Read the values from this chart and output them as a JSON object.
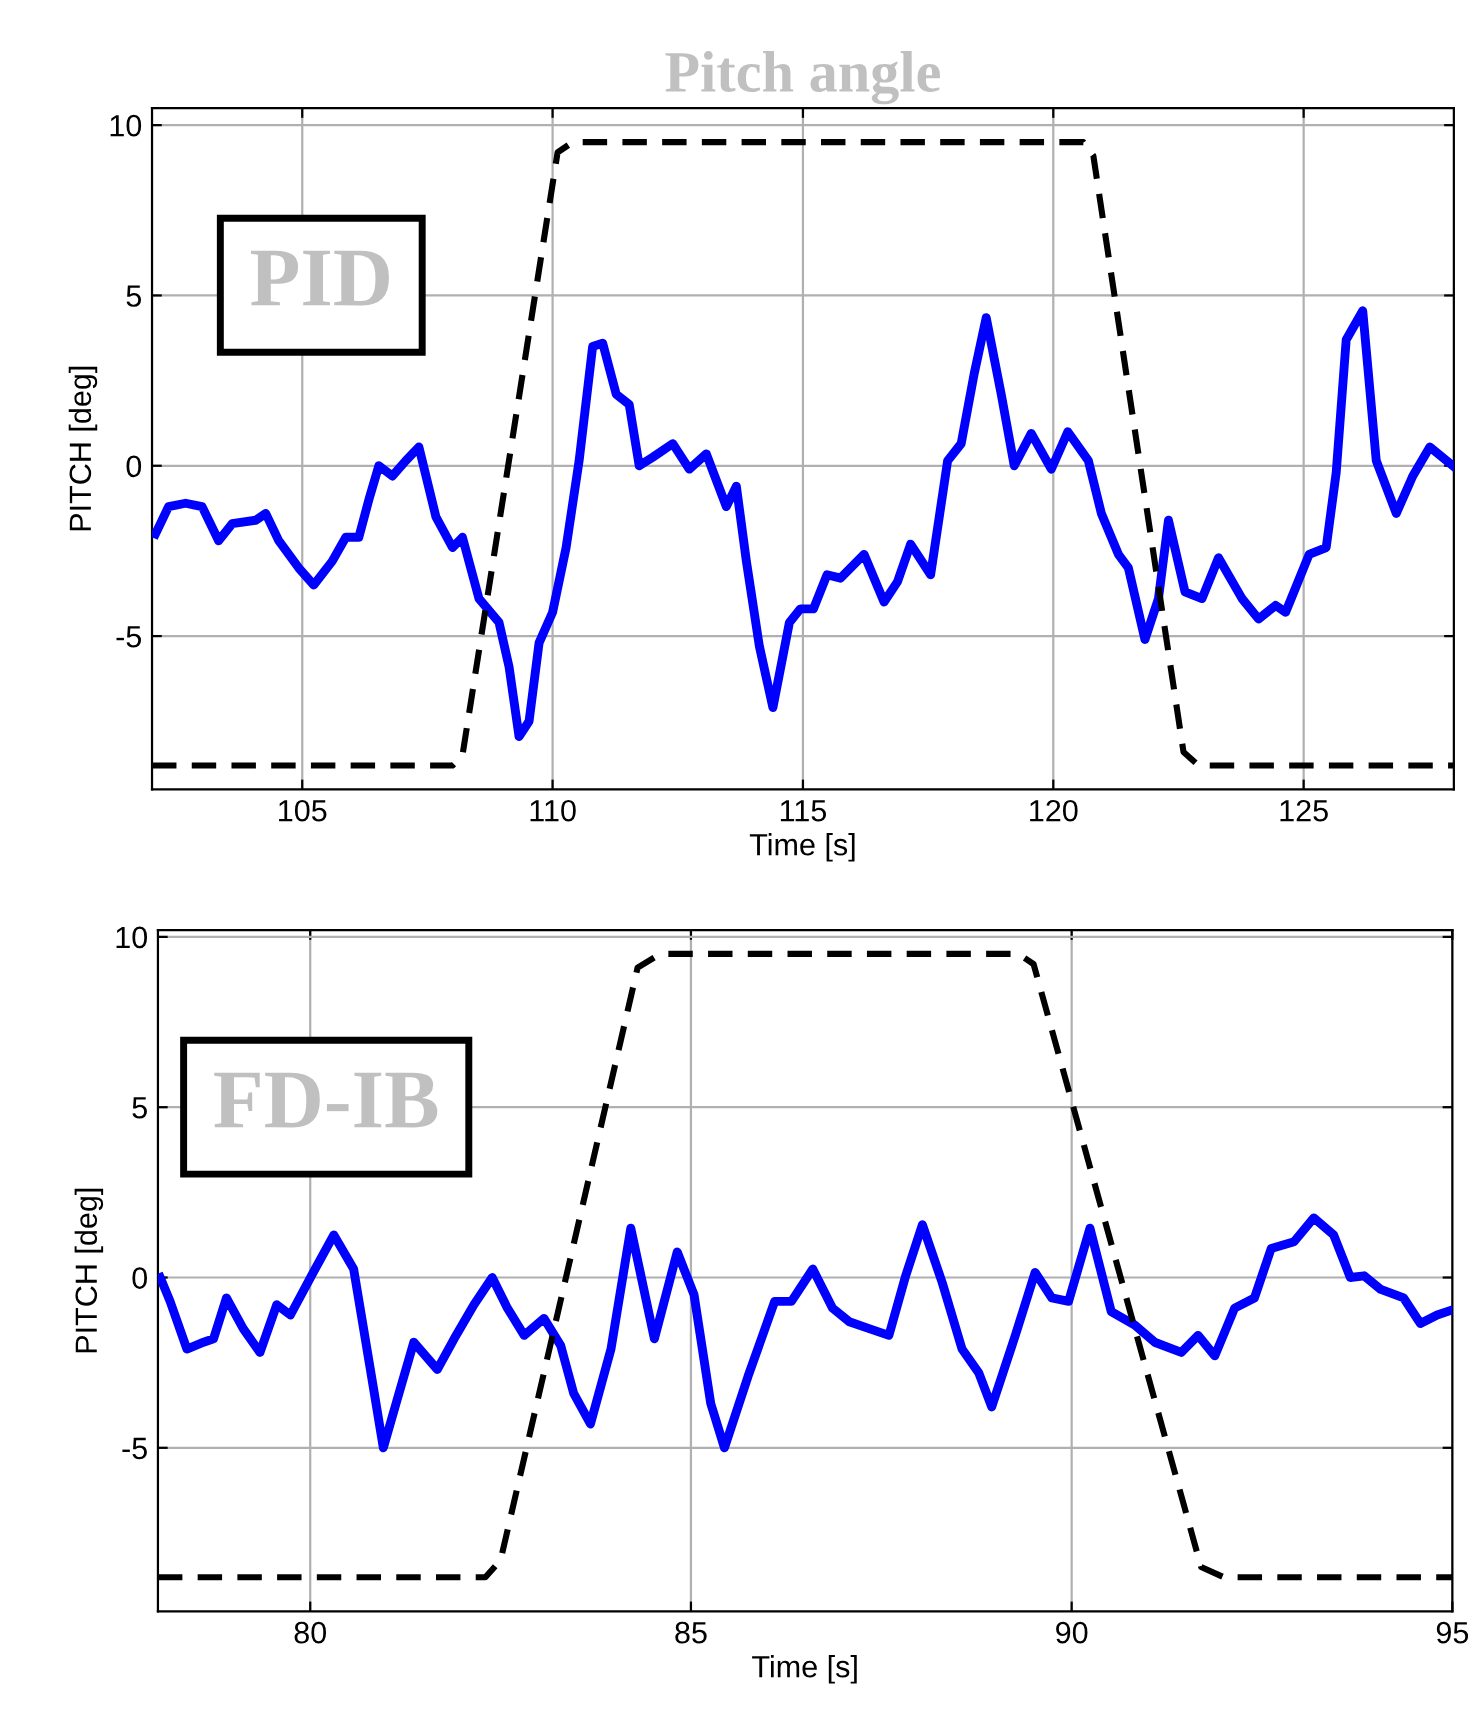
{
  "chart_data": [
    {
      "type": "line",
      "title": "Pitch angle",
      "xlabel": "Time [s]",
      "ylabel": "PITCH [deg]",
      "annotations": [
        "PID"
      ],
      "xlim": [
        102,
        128
      ],
      "ylim": [
        -9.5,
        10.5
      ],
      "xticks": [
        105,
        110,
        115,
        120,
        125
      ],
      "yticks": [
        -5,
        0,
        5,
        10
      ],
      "grid": true,
      "series": [
        {
          "color": "#0000ff",
          "line_style": "solid",
          "x": [
            102.07,
            102.33,
            102.67,
            103.0,
            103.33,
            103.6,
            104.07,
            104.27,
            104.53,
            104.93,
            105.23,
            105.6,
            105.87,
            106.13,
            106.33,
            106.53,
            106.8,
            107.07,
            107.33,
            107.67,
            108.0,
            108.2,
            108.53,
            108.93,
            109.13,
            109.33,
            109.53,
            109.73,
            110.0,
            110.27,
            110.53,
            110.8,
            111.0,
            111.27,
            111.53,
            111.73,
            112.0,
            112.4,
            112.73,
            113.07,
            113.47,
            113.67,
            113.87,
            114.13,
            114.4,
            114.73,
            114.95,
            115.21,
            115.48,
            115.75,
            116.22,
            116.62,
            116.89,
            117.15,
            117.55,
            117.89,
            118.16,
            118.42,
            118.66,
            118.96,
            119.22,
            119.56,
            119.96,
            120.29,
            120.7,
            120.96,
            121.3,
            121.5,
            121.83,
            122.1,
            122.3,
            122.63,
            122.97,
            123.3,
            123.77,
            124.1,
            124.44,
            124.64,
            125.11,
            125.45,
            125.65,
            125.85,
            126.18,
            126.45,
            126.85,
            127.18,
            127.52,
            127.98
          ],
          "values": [
            -2.0,
            -1.2,
            -1.1,
            -1.2,
            -2.2,
            -1.7,
            -1.6,
            -1.4,
            -2.2,
            -3.0,
            -3.5,
            -2.8,
            -2.1,
            -2.1,
            -1.0,
            0.0,
            -0.3,
            0.15,
            0.55,
            -1.5,
            -2.4,
            -2.1,
            -3.9,
            -4.6,
            -5.9,
            -7.95,
            -7.5,
            -5.2,
            -4.3,
            -2.4,
            0.15,
            3.5,
            3.6,
            2.1,
            1.8,
            0.0,
            0.25,
            0.65,
            -0.1,
            0.35,
            -1.2,
            -0.6,
            -2.8,
            -5.3,
            -7.1,
            -4.6,
            -4.2,
            -4.2,
            -3.2,
            -3.3,
            -2.6,
            -4.0,
            -3.4,
            -2.3,
            -3.2,
            0.15,
            0.65,
            2.7,
            4.35,
            2.1,
            0.0,
            0.95,
            -0.1,
            1.0,
            0.15,
            -1.4,
            -2.6,
            -3.0,
            -5.1,
            -3.9,
            -1.6,
            -3.7,
            -3.9,
            -2.7,
            -3.9,
            -4.5,
            -4.1,
            -4.3,
            -2.6,
            -2.4,
            -0.2,
            3.7,
            4.55,
            0.15,
            -1.4,
            -0.3,
            0.55,
            0.0
          ]
        },
        {
          "color": "#000000",
          "line_style": "dashed",
          "x": [
            102,
            108.0,
            108.2,
            110.1,
            110.4,
            120.6,
            120.8,
            122.6,
            122.9,
            128
          ],
          "values": [
            -8.8,
            -8.8,
            -8.5,
            9.2,
            9.5,
            9.5,
            9.1,
            -8.4,
            -8.8,
            -8.8
          ]
        }
      ]
    },
    {
      "type": "line",
      "xlabel": "Time [s]",
      "ylabel": "PITCH [deg]",
      "annotations": [
        "FD-IB"
      ],
      "xlim": [
        78,
        95
      ],
      "ylim": [
        -9.8,
        10.2
      ],
      "xticks": [
        80,
        85,
        90,
        95
      ],
      "yticks": [
        -5,
        0,
        5,
        10
      ],
      "grid": true,
      "series": [
        {
          "color": "#0000ff",
          "line_style": "solid",
          "x": [
            78.03,
            78.16,
            78.38,
            78.6,
            78.73,
            78.9,
            79.12,
            79.34,
            79.56,
            79.74,
            80.04,
            80.31,
            80.57,
            80.79,
            80.96,
            81.14,
            81.36,
            81.67,
            81.89,
            82.15,
            82.39,
            82.59,
            82.81,
            83.07,
            83.29,
            83.46,
            83.68,
            83.95,
            84.21,
            84.52,
            84.82,
            85.04,
            85.26,
            85.44,
            85.75,
            86.1,
            86.32,
            86.6,
            86.86,
            87.08,
            87.34,
            87.6,
            87.82,
            88.04,
            88.3,
            88.56,
            88.78,
            88.95,
            89.26,
            89.52,
            89.74,
            89.96,
            90.24,
            90.52,
            90.83,
            91.09,
            91.44,
            91.66,
            91.88,
            92.14,
            92.4,
            92.62,
            92.92,
            93.18,
            93.44,
            93.66,
            93.84,
            94.06,
            94.36,
            94.58,
            94.8,
            95.0
          ],
          "values": [
            0,
            -0.7,
            -2.1,
            -1.9,
            -1.8,
            -0.6,
            -1.5,
            -2.2,
            -0.8,
            -1.1,
            0.15,
            1.25,
            0.25,
            -2.7,
            -5.0,
            -3.6,
            -1.9,
            -2.7,
            -1.8,
            -0.8,
            0.0,
            -0.9,
            -1.7,
            -1.2,
            -2.0,
            -3.4,
            -4.3,
            -2.1,
            1.45,
            -1.8,
            0.75,
            -0.5,
            -3.7,
            -5.0,
            -2.9,
            -0.7,
            -0.7,
            0.25,
            -0.9,
            -1.3,
            -1.5,
            -1.7,
            0.05,
            1.55,
            -0.15,
            -2.1,
            -2.8,
            -3.8,
            -1.7,
            0.15,
            -0.6,
            -0.7,
            1.45,
            -1.0,
            -1.4,
            -1.9,
            -2.2,
            -1.7,
            -2.3,
            -0.9,
            -0.6,
            0.85,
            1.05,
            1.75,
            1.25,
            0.0,
            0.05,
            -0.35,
            -0.6,
            -1.35,
            -1.1,
            -0.95
          ]
        },
        {
          "color": "#000000",
          "line_style": "dashed",
          "x": [
            78,
            82.3,
            82.5,
            84.3,
            84.6,
            89.3,
            89.5,
            91.7,
            92.0,
            95
          ],
          "values": [
            -8.8,
            -8.8,
            -8.3,
            9.1,
            9.5,
            9.5,
            9.2,
            -8.5,
            -8.8,
            -8.8
          ]
        }
      ]
    }
  ]
}
